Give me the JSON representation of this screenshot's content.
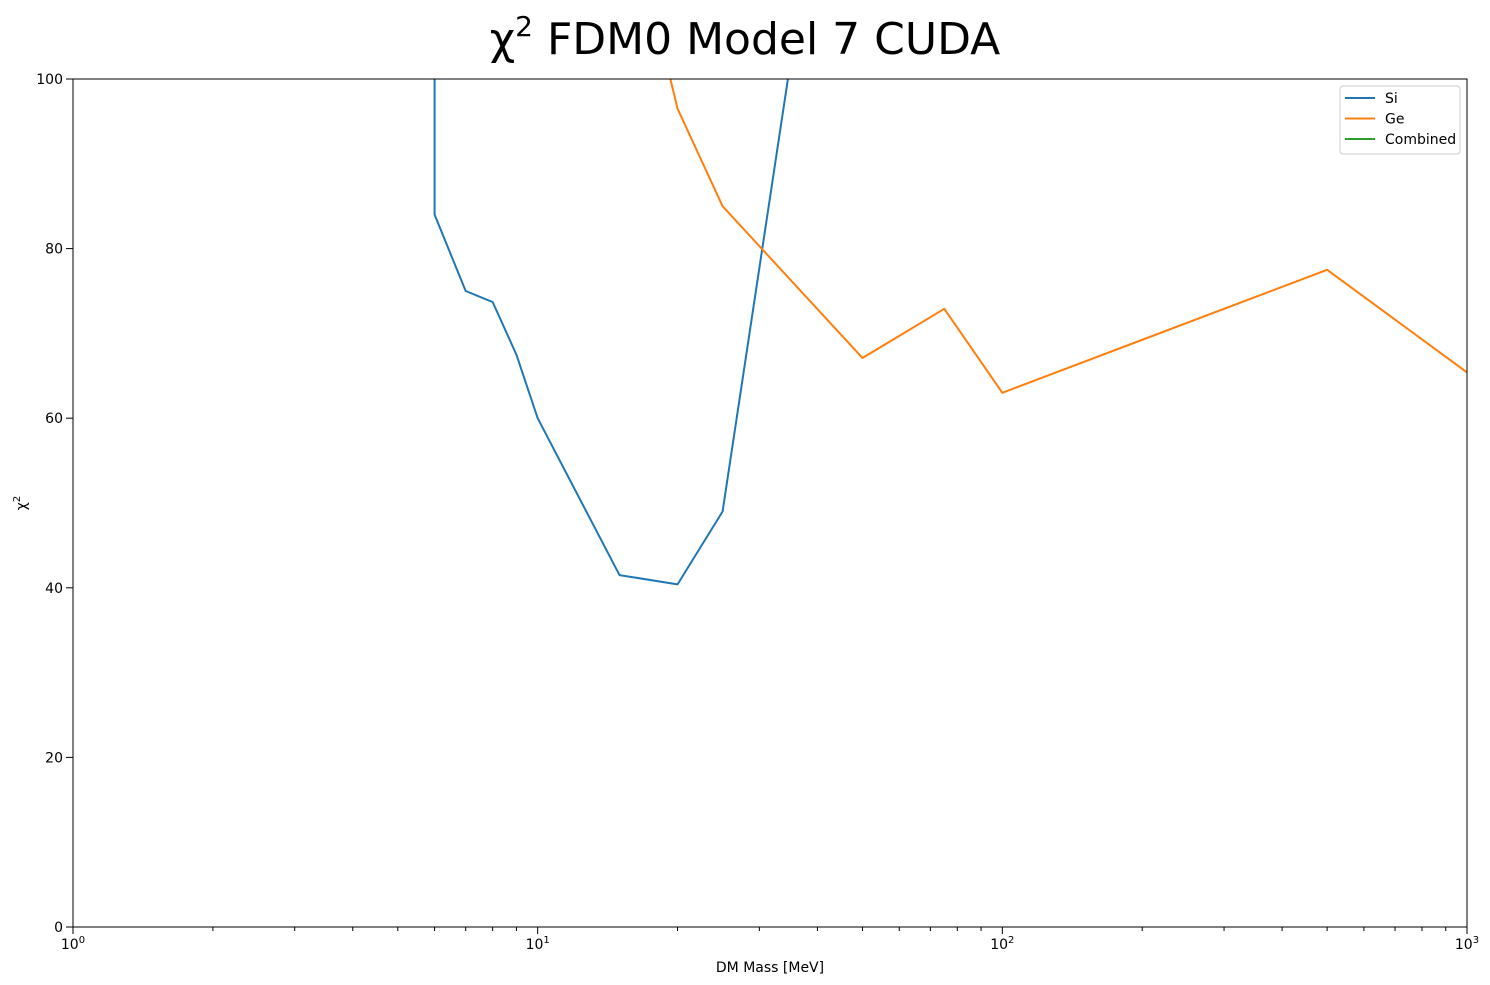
{
  "chart_data": {
    "type": "line",
    "title": {
      "base": "χ",
      "sup": "2",
      "rest": " FDM0 Model 7 CUDA"
    },
    "xlabel": "DM Mass [MeV]",
    "ylabel": {
      "base": "χ",
      "sup": "2"
    },
    "xscale": "log",
    "xlim": [
      1,
      1000
    ],
    "ylim": [
      0,
      100
    ],
    "xticks": [
      {
        "value": 1,
        "base": "10",
        "exp": "0"
      },
      {
        "value": 10,
        "base": "10",
        "exp": "1"
      },
      {
        "value": 100,
        "base": "10",
        "exp": "2"
      },
      {
        "value": 1000,
        "base": "10",
        "exp": "3"
      }
    ],
    "yticks": [
      {
        "value": 0,
        "label": "0"
      },
      {
        "value": 20,
        "label": "20"
      },
      {
        "value": 40,
        "label": "40"
      },
      {
        "value": 60,
        "label": "60"
      },
      {
        "value": 80,
        "label": "80"
      },
      {
        "value": 100,
        "label": "100"
      }
    ],
    "grid": false,
    "legend_position": "top-right",
    "series": [
      {
        "name": "Si",
        "color": "#1f77b4",
        "points": [
          [
            6,
            140
          ],
          [
            6,
            84
          ],
          [
            7,
            75
          ],
          [
            8,
            73.7
          ],
          [
            9,
            67.5
          ],
          [
            10,
            60
          ],
          [
            15,
            41.5
          ],
          [
            20,
            40.4
          ],
          [
            25,
            49
          ],
          [
            35,
            102
          ],
          [
            40,
            130
          ]
        ]
      },
      {
        "name": "Ge",
        "color": "#ff7f0e",
        "points": [
          [
            18,
            115
          ],
          [
            19.3,
            100
          ],
          [
            20,
            96.5
          ],
          [
            25,
            85
          ],
          [
            50,
            67.1
          ],
          [
            75,
            72.9
          ],
          [
            100,
            63
          ],
          [
            500,
            77.5
          ],
          [
            1000,
            65.4
          ]
        ]
      },
      {
        "name": "Combined",
        "color": "#2ca02c",
        "points": []
      }
    ]
  }
}
